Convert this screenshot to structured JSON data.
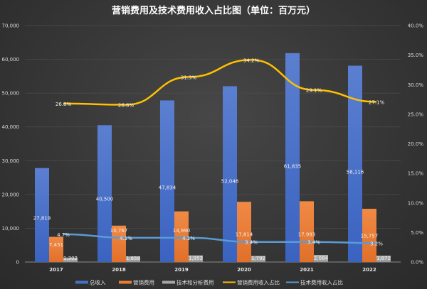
{
  "chart_data": {
    "type": "bar",
    "title": "营销费用及技术费用收入占比图（单位：百万元）",
    "categories": [
      "2017",
      "2018",
      "2019",
      "2020",
      "2021",
      "2022"
    ],
    "left_axis": {
      "ylim": [
        0,
        70000
      ],
      "ticks": [
        "0",
        "10,000",
        "20,000",
        "30,000",
        "40,000",
        "50,000",
        "60,000",
        "70,000"
      ]
    },
    "right_axis": {
      "ylim": [
        0,
        40
      ],
      "ticks": [
        "0.0%",
        "5.0%",
        "10.0%",
        "15.0%",
        "20.0%",
        "25.0%",
        "30.0%",
        "35.0%",
        "40.0%"
      ]
    },
    "grid": true,
    "legend_placement": "bottom",
    "series": [
      {
        "name": "总收入",
        "type": "bar",
        "axis": "left",
        "color": "#4472c4",
        "values": [
          27819,
          40500,
          47834,
          52046,
          61835,
          58116
        ],
        "labels": [
          "27,819",
          "40,500",
          "47,834",
          "52,046",
          "61,835",
          "58,116"
        ]
      },
      {
        "name": "营销费用",
        "type": "bar",
        "axis": "left",
        "color": "#ed7d31",
        "values": [
          7451,
          10767,
          14990,
          17814,
          17993,
          15757
        ],
        "labels": [
          "7,451",
          "10,767",
          "14,990",
          "17,814",
          "17,993",
          "15,757"
        ]
      },
      {
        "name": "技术和分析费用",
        "type": "bar",
        "axis": "left",
        "color": "#a5a5a5",
        "values": [
          1302,
          1659,
          1953,
          1792,
          2084,
          1872
        ],
        "labels": [
          "1,302",
          "1,659",
          "1,953",
          "1,792",
          "2,084",
          "1,872"
        ]
      },
      {
        "name": "营销费用收入占比",
        "type": "line",
        "axis": "right",
        "color": "#ffc000",
        "values": [
          26.8,
          26.6,
          31.3,
          34.2,
          29.1,
          27.1
        ],
        "labels": [
          "26.8%",
          "26.6%",
          "31.3%",
          "34.2%",
          "29.1%",
          "27.1%"
        ]
      },
      {
        "name": "技术费用收入占比",
        "type": "line",
        "axis": "right",
        "color": "#5b9bd5",
        "values": [
          4.7,
          4.1,
          4.1,
          3.4,
          3.4,
          3.2
        ],
        "labels": [
          "4.7%",
          "4.1%",
          "4.1%",
          "3.4%",
          "3.4%",
          "3.2%"
        ]
      }
    ]
  }
}
